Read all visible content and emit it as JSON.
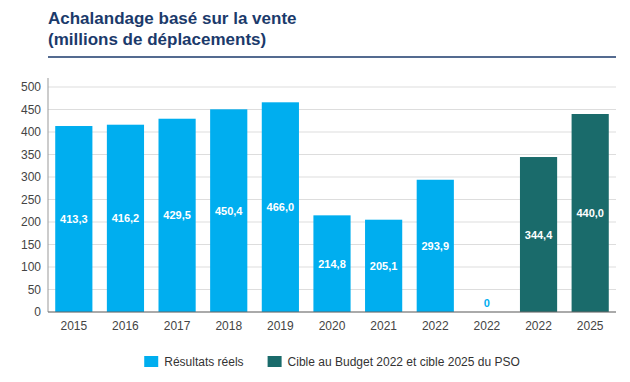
{
  "chart_data": {
    "type": "bar",
    "title": "Achalandage basé sur la vente",
    "subtitle": "(millions de déplacements)",
    "categories": [
      "2015",
      "2016",
      "2017",
      "2018",
      "2019",
      "2020",
      "2021",
      "2022",
      "2022",
      "2022",
      "2025"
    ],
    "series": [
      {
        "name": "Résultats réels",
        "color": "#00AEEF",
        "values": [
          413.3,
          416.2,
          429.5,
          450.4,
          466.0,
          214.8,
          205.1,
          293.9,
          0,
          null,
          null
        ],
        "value_labels": [
          "413,3",
          "416,2",
          "429,5",
          "450,4",
          "466,0",
          "214,8",
          "205,1",
          "293,9",
          "0",
          null,
          null
        ]
      },
      {
        "name": "Cible au Budget 2022 et cible 2025 du PSO",
        "color": "#1A6B6B",
        "values": [
          null,
          null,
          null,
          null,
          null,
          null,
          null,
          null,
          null,
          344.4,
          440.0
        ],
        "value_labels": [
          null,
          null,
          null,
          null,
          null,
          null,
          null,
          null,
          null,
          "344,4",
          "440,0"
        ]
      }
    ],
    "stacked": true,
    "ylim": [
      0,
      520
    ],
    "yticks": [
      0,
      50,
      100,
      150,
      200,
      250,
      300,
      350,
      400,
      450,
      500
    ],
    "grid": true,
    "legend": "bottom",
    "data_labels": true
  }
}
